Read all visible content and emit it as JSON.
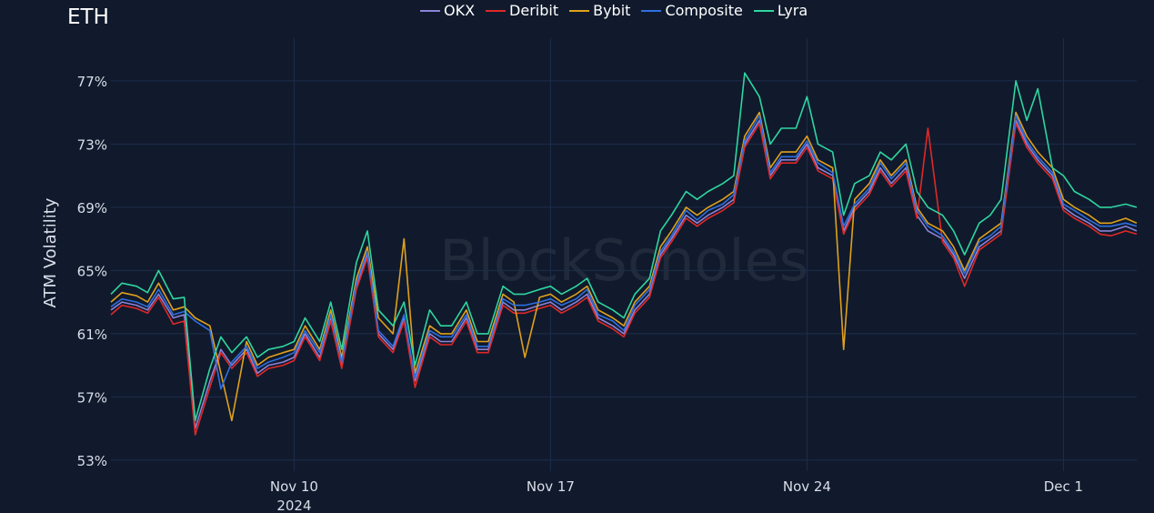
{
  "chart_data": {
    "type": "line",
    "title": "ETH",
    "ylabel": "ATM Volatility",
    "watermark": "BlockScholes",
    "ylim": [
      52.3,
      79.7
    ],
    "y_ticks": [
      53,
      57,
      61,
      65,
      69,
      73,
      77
    ],
    "y_tick_labels": [
      "53%",
      "57%",
      "61%",
      "65%",
      "69%",
      "73%",
      "77%"
    ],
    "xlim": [
      5.0,
      33.0
    ],
    "x_ticks": [
      10,
      17,
      24,
      31
    ],
    "x_tick_labels": [
      "Nov 10",
      "Nov 17",
      "Nov 24",
      "Dec 1"
    ],
    "x_tick_sublabel": "2024",
    "legend": [
      "OKX",
      "Deribit",
      "Bybit",
      "Composite",
      "Lyra"
    ],
    "legend_position": "top",
    "grid": true,
    "colors": {
      "background": "#101a2c",
      "grid": "#1e2d4d",
      "OKX": "#8c82d8",
      "Deribit": "#e02828",
      "Bybit": "#e0a11c",
      "Composite": "#2f6fe0",
      "Lyra": "#2fd6a0"
    },
    "x": [
      5.0,
      5.3,
      5.7,
      6.0,
      6.3,
      6.7,
      7.0,
      7.3,
      7.7,
      8.0,
      8.3,
      8.7,
      9.0,
      9.3,
      9.7,
      10.0,
      10.3,
      10.7,
      11.0,
      11.3,
      11.7,
      12.0,
      12.3,
      12.7,
      13.0,
      13.3,
      13.7,
      14.0,
      14.3,
      14.7,
      15.0,
      15.3,
      15.7,
      16.0,
      16.3,
      16.7,
      17.0,
      17.3,
      17.7,
      18.0,
      18.3,
      18.7,
      19.0,
      19.3,
      19.7,
      20.0,
      20.3,
      20.7,
      21.0,
      21.3,
      21.7,
      22.0,
      22.3,
      22.7,
      23.0,
      23.3,
      23.7,
      24.0,
      24.3,
      24.7,
      25.0,
      25.3,
      25.7,
      26.0,
      26.3,
      26.7,
      27.0,
      27.3,
      27.7,
      28.0,
      28.3,
      28.7,
      29.0,
      29.3,
      29.7,
      30.0,
      30.3,
      30.7,
      31.0,
      31.3,
      31.7,
      32.0,
      32.3,
      32.7,
      33.0
    ],
    "series": [
      {
        "name": "OKX",
        "values": [
          62.5,
          63.0,
          62.8,
          62.5,
          63.5,
          62.0,
          62.2,
          55.0,
          58.0,
          60.0,
          59.0,
          60.0,
          58.5,
          59.0,
          59.2,
          59.5,
          61.0,
          59.5,
          62.0,
          59.0,
          64.0,
          66.0,
          61.0,
          60.0,
          62.0,
          58.0,
          61.0,
          60.5,
          60.5,
          62.0,
          60.0,
          60.0,
          63.0,
          62.5,
          62.5,
          62.8,
          63.0,
          62.5,
          63.0,
          63.5,
          62.0,
          61.5,
          61.0,
          62.5,
          63.5,
          66.0,
          67.0,
          68.5,
          68.0,
          68.5,
          69.0,
          69.5,
          73.0,
          74.5,
          71.0,
          72.0,
          72.0,
          73.0,
          71.5,
          71.0,
          67.5,
          69.0,
          70.0,
          71.5,
          70.5,
          71.5,
          68.5,
          67.5,
          67.0,
          66.0,
          64.5,
          66.5,
          67.0,
          67.5,
          74.5,
          73.0,
          72.0,
          71.0,
          69.0,
          68.5,
          68.0,
          67.5,
          67.5,
          67.8,
          67.5
        ]
      },
      {
        "name": "Deribit",
        "values": [
          62.2,
          62.8,
          62.6,
          62.3,
          63.3,
          61.6,
          61.8,
          54.6,
          57.6,
          59.8,
          58.8,
          59.8,
          58.3,
          58.8,
          59.0,
          59.3,
          60.8,
          59.3,
          61.8,
          58.8,
          63.8,
          65.8,
          60.8,
          59.8,
          61.8,
          57.6,
          60.8,
          60.3,
          60.3,
          61.8,
          59.8,
          59.8,
          62.8,
          62.3,
          62.3,
          62.6,
          62.8,
          62.3,
          62.8,
          63.3,
          61.8,
          61.3,
          60.8,
          62.3,
          63.3,
          65.8,
          66.8,
          68.3,
          67.8,
          68.3,
          68.8,
          69.3,
          72.8,
          74.3,
          70.8,
          71.8,
          71.8,
          72.8,
          71.3,
          70.8,
          67.3,
          68.8,
          69.8,
          71.3,
          70.3,
          71.3,
          68.3,
          74.0,
          66.8,
          65.8,
          64.0,
          66.3,
          66.8,
          67.3,
          74.3,
          72.8,
          71.8,
          70.8,
          68.8,
          68.3,
          67.8,
          67.3,
          67.2,
          67.5,
          67.3
        ]
      },
      {
        "name": "Bybit",
        "values": [
          63.0,
          63.6,
          63.4,
          63.0,
          64.2,
          62.5,
          62.7,
          62.0,
          61.5,
          58.5,
          55.5,
          60.5,
          59.0,
          59.5,
          59.8,
          60.0,
          61.5,
          60.0,
          62.5,
          59.5,
          64.5,
          66.5,
          62.0,
          61.0,
          67.0,
          58.5,
          61.5,
          61.0,
          61.0,
          62.5,
          60.5,
          60.5,
          63.5,
          63.0,
          59.5,
          63.3,
          63.5,
          63.0,
          63.5,
          64.0,
          62.5,
          62.0,
          61.5,
          63.0,
          64.0,
          66.5,
          67.5,
          69.0,
          68.5,
          69.0,
          69.5,
          70.0,
          73.5,
          75.0,
          71.5,
          72.5,
          72.5,
          73.5,
          72.0,
          71.5,
          60.0,
          69.5,
          70.5,
          72.0,
          71.0,
          72.0,
          69.0,
          68.0,
          67.5,
          66.5,
          65.0,
          67.0,
          67.5,
          68.0,
          75.0,
          73.5,
          72.5,
          71.5,
          69.5,
          69.0,
          68.5,
          68.0,
          68.0,
          68.3,
          68.0
        ]
      },
      {
        "name": "Composite",
        "values": [
          62.7,
          63.2,
          63.0,
          62.7,
          63.8,
          62.2,
          62.4,
          61.8,
          61.2,
          57.5,
          59.2,
          60.2,
          58.8,
          59.2,
          59.5,
          59.8,
          61.2,
          59.8,
          62.2,
          59.2,
          64.2,
          66.2,
          61.2,
          60.2,
          62.2,
          58.2,
          61.2,
          60.8,
          60.8,
          62.2,
          60.2,
          60.2,
          63.2,
          62.8,
          62.8,
          63.0,
          63.2,
          62.8,
          63.2,
          63.8,
          62.2,
          61.8,
          61.2,
          62.8,
          63.8,
          66.2,
          67.2,
          68.8,
          68.2,
          68.8,
          69.2,
          69.8,
          73.2,
          74.8,
          71.2,
          72.2,
          72.2,
          73.2,
          71.8,
          71.2,
          67.8,
          69.2,
          70.2,
          71.8,
          70.8,
          71.8,
          68.8,
          67.8,
          67.2,
          66.2,
          64.8,
          66.8,
          67.2,
          67.8,
          74.8,
          73.2,
          72.2,
          71.2,
          69.2,
          68.8,
          68.2,
          67.8,
          67.8,
          68.0,
          67.8
        ]
      },
      {
        "name": "Lyra",
        "values": [
          63.5,
          64.2,
          64.0,
          63.6,
          65.0,
          63.2,
          63.3,
          55.5,
          58.8,
          60.8,
          59.8,
          60.8,
          59.5,
          60.0,
          60.2,
          60.5,
          62.0,
          60.5,
          63.0,
          60.0,
          65.5,
          67.5,
          62.5,
          61.5,
          63.0,
          59.0,
          62.5,
          61.5,
          61.5,
          63.0,
          61.0,
          61.0,
          64.0,
          63.5,
          63.5,
          63.8,
          64.0,
          63.5,
          64.0,
          64.5,
          63.0,
          62.5,
          62.0,
          63.5,
          64.5,
          67.5,
          68.5,
          70.0,
          69.5,
          70.0,
          70.5,
          71.0,
          77.5,
          76.0,
          73.0,
          74.0,
          74.0,
          76.0,
          73.0,
          72.5,
          68.5,
          70.5,
          71.0,
          72.5,
          72.0,
          73.0,
          70.0,
          69.0,
          68.5,
          67.5,
          66.0,
          68.0,
          68.5,
          69.5,
          77.0,
          74.5,
          76.5,
          71.5,
          71.0,
          70.0,
          69.5,
          69.0,
          69.0,
          69.2,
          69.0
        ]
      }
    ]
  }
}
